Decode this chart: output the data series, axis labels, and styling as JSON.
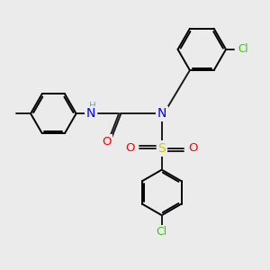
{
  "background_color": "#ebebeb",
  "bond_color": "#1a1a1a",
  "N_color": "#0000ff",
  "H_color": "#7aa0aa",
  "O_color": "#ff0000",
  "S_color": "#cccc00",
  "Cl_color": "#33cc00",
  "figsize": [
    3.0,
    3.0
  ],
  "dpi": 100,
  "xlim": [
    0,
    10
  ],
  "ylim": [
    0,
    10
  ]
}
